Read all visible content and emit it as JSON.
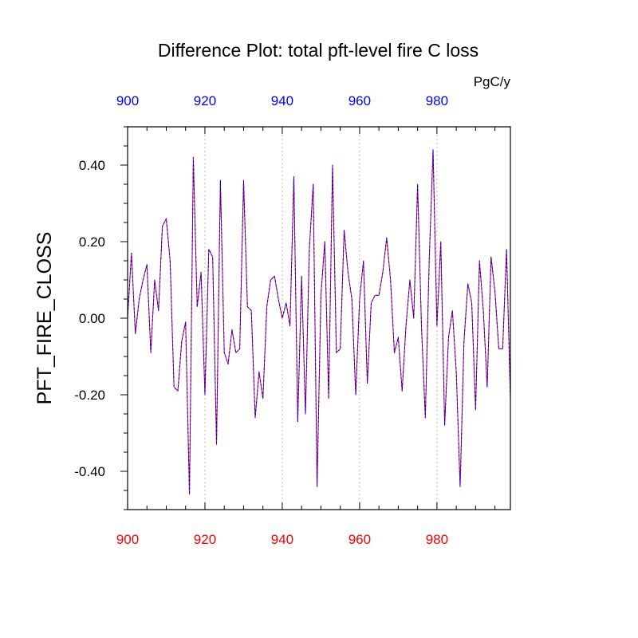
{
  "chart_data": {
    "type": "line",
    "title": "Difference Plot: total pft-level fire C loss",
    "units": "PgC/y",
    "xlabel": "",
    "ylabel": "PFT_FIRE_CLOSS",
    "xlim": [
      900,
      999
    ],
    "ylim": [
      -0.5,
      0.5
    ],
    "xticks": [
      900,
      920,
      940,
      960,
      980
    ],
    "xtick_labels": [
      "900",
      "920",
      "940",
      "960",
      "980"
    ],
    "yticks": [
      -0.4,
      -0.2,
      0.0,
      0.2,
      0.4
    ],
    "ytick_labels": [
      "-0.40",
      "-0.20",
      "0.00",
      "0.20",
      "0.40"
    ],
    "grid": "vertical dotted at x ticks",
    "colors": {
      "bottom_axis_labels": "#ff0000",
      "top_axis_labels": "#0000ff",
      "series_a": "#ff0000",
      "series_b": "#0000ff",
      "grid": "#bbbbbb"
    },
    "x": [
      900,
      901,
      902,
      903,
      904,
      905,
      906,
      907,
      908,
      909,
      910,
      911,
      912,
      913,
      914,
      915,
      916,
      917,
      918,
      919,
      920,
      921,
      922,
      923,
      924,
      925,
      926,
      927,
      928,
      929,
      930,
      931,
      932,
      933,
      934,
      935,
      936,
      937,
      938,
      939,
      940,
      941,
      942,
      943,
      944,
      945,
      946,
      947,
      948,
      949,
      950,
      951,
      952,
      953,
      954,
      955,
      956,
      957,
      958,
      959,
      960,
      961,
      962,
      963,
      964,
      965,
      966,
      967,
      968,
      969,
      970,
      971,
      972,
      973,
      974,
      975,
      976,
      977,
      978,
      979,
      980,
      981,
      982,
      983,
      984,
      985,
      986,
      987,
      988,
      989,
      990,
      991,
      992,
      993,
      994,
      995,
      996,
      997,
      998,
      999
    ],
    "series": [
      {
        "name": "PFT_FIRE_CLOSS difference",
        "values": [
          0.0,
          0.17,
          -0.04,
          0.05,
          0.1,
          0.14,
          -0.09,
          0.1,
          0.02,
          0.24,
          0.26,
          0.15,
          -0.18,
          -0.19,
          -0.06,
          -0.01,
          -0.46,
          0.42,
          0.03,
          0.12,
          -0.2,
          0.18,
          0.16,
          -0.33,
          0.36,
          -0.09,
          -0.12,
          -0.03,
          -0.09,
          -0.08,
          0.36,
          0.03,
          0.02,
          -0.26,
          -0.14,
          -0.21,
          0.03,
          0.1,
          0.11,
          0.05,
          0.0,
          0.04,
          -0.02,
          0.37,
          -0.27,
          0.11,
          -0.25,
          0.18,
          0.35,
          -0.44,
          0.06,
          0.2,
          -0.21,
          0.4,
          -0.09,
          -0.08,
          0.23,
          0.12,
          0.05,
          -0.2,
          0.05,
          0.15,
          -0.17,
          0.04,
          0.06,
          0.06,
          0.12,
          0.21,
          0.1,
          -0.09,
          -0.05,
          -0.19,
          -0.02,
          0.1,
          0.0,
          0.35,
          -0.02,
          -0.26,
          0.15,
          0.44,
          -0.02,
          0.2,
          -0.28,
          -0.05,
          0.02,
          -0.14,
          -0.44,
          -0.06,
          0.09,
          0.04,
          -0.24,
          0.15,
          0.02,
          -0.18,
          0.16,
          0.07,
          -0.08,
          -0.08,
          0.18,
          -0.21
        ]
      }
    ]
  }
}
